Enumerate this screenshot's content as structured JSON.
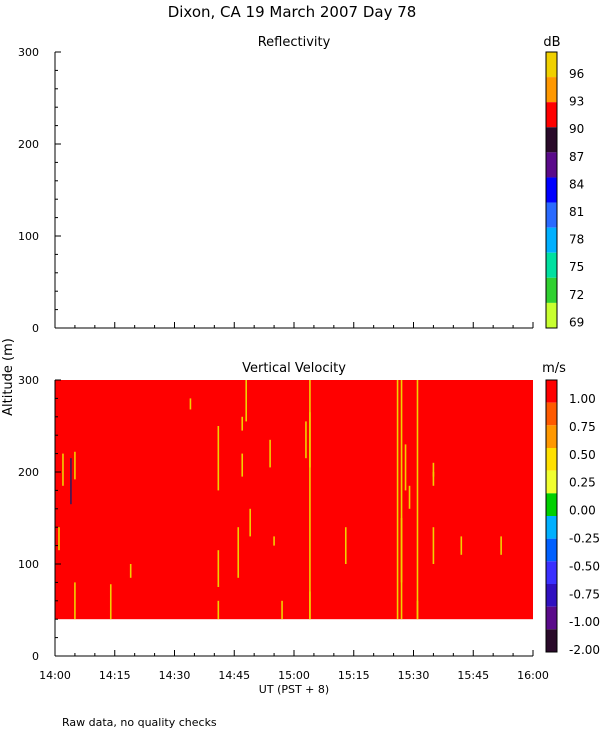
{
  "figure": {
    "title": "Dixon, CA 19 March 2007  Day  78",
    "footer": "Raw data, no quality checks"
  },
  "chart_data": [
    {
      "type": "heatmap",
      "title": "Reflectivity",
      "xlabel": "UT  (PST + 8)",
      "ylabel": "Altitude (m)",
      "xlim": [
        "14:00",
        "16:00"
      ],
      "x_ticks": [
        "14:00",
        "14:15",
        "14:30",
        "14:45",
        "15:00",
        "15:15",
        "15:30",
        "15:45",
        "16:00"
      ],
      "ylim": [
        0,
        300
      ],
      "y_ticks": [
        0,
        100,
        200,
        300
      ],
      "colorbar": {
        "unit": "dB",
        "labels": [
          "96",
          "93",
          "90",
          "87",
          "84",
          "81",
          "78",
          "75",
          "72",
          "69"
        ],
        "colors": [
          "#f0d000",
          "#ff9800",
          "#ff0000",
          "#2a0a2a",
          "#5a0a8a",
          "#0000ff",
          "#2a6aff",
          "#00b0ff",
          "#00e0a0",
          "#30d030",
          "#c8ff30"
        ]
      },
      "data": "no echoes displayed"
    },
    {
      "type": "heatmap",
      "title": "Vertical Velocity",
      "xlabel": "UT  (PST + 8)",
      "ylabel": "Altitude (m)",
      "xlim": [
        "14:00",
        "16:00"
      ],
      "x_ticks": [
        "14:00",
        "14:15",
        "14:30",
        "14:45",
        "15:00",
        "15:15",
        "15:30",
        "15:45",
        "16:00"
      ],
      "ylim": [
        0,
        300
      ],
      "y_ticks": [
        0,
        100,
        200,
        300
      ],
      "data_range_altitude": [
        40,
        300
      ],
      "dominant_value": 1.0,
      "colorbar": {
        "unit": "m/s",
        "labels": [
          "1.00",
          "0.75",
          "0.50",
          "0.25",
          "0.00",
          "-0.25",
          "-0.50",
          "-0.75",
          "-1.00",
          "-2.00"
        ],
        "colors": [
          "#ff0000",
          "#ff5a00",
          "#ff9800",
          "#ffe000",
          "#f0ff30",
          "#00d000",
          "#00b0ff",
          "#0060ff",
          "#3a30ff",
          "#3010c0",
          "#5a0a8a",
          "#2a0a2a"
        ]
      },
      "streaks": [
        {
          "x": "14:01",
          "y": [
            115,
            140
          ]
        },
        {
          "x": "14:02",
          "y": [
            185,
            220
          ]
        },
        {
          "x": "14:04",
          "y": [
            165,
            215
          ],
          "value": -2.0
        },
        {
          "x": "14:05",
          "y": [
            192,
            222
          ]
        },
        {
          "x": "14:05",
          "y": [
            40,
            80
          ]
        },
        {
          "x": "14:14",
          "y": [
            40,
            78
          ]
        },
        {
          "x": "14:19",
          "y": [
            85,
            100
          ]
        },
        {
          "x": "14:34",
          "y": [
            268,
            280
          ]
        },
        {
          "x": "14:41",
          "y": [
            40,
            60
          ]
        },
        {
          "x": "14:41",
          "y": [
            180,
            250
          ]
        },
        {
          "x": "14:41",
          "y": [
            75,
            115
          ]
        },
        {
          "x": "14:46",
          "y": [
            85,
            140
          ]
        },
        {
          "x": "14:47",
          "y": [
            195,
            220
          ]
        },
        {
          "x": "14:47",
          "y": [
            245,
            260
          ]
        },
        {
          "x": "14:48",
          "y": [
            255,
            300
          ]
        },
        {
          "x": "14:49",
          "y": [
            130,
            160
          ]
        },
        {
          "x": "14:54",
          "y": [
            205,
            235
          ]
        },
        {
          "x": "14:55",
          "y": [
            120,
            130
          ]
        },
        {
          "x": "14:57",
          "y": [
            40,
            60
          ]
        },
        {
          "x": "15:03",
          "y": [
            215,
            255
          ]
        },
        {
          "x": "15:04",
          "y": [
            40,
            300
          ]
        },
        {
          "x": "15:04",
          "y": [
            40,
            70
          ]
        },
        {
          "x": "15:04",
          "y": [
            205,
            265
          ]
        },
        {
          "x": "15:13",
          "y": [
            100,
            140
          ]
        },
        {
          "x": "15:26",
          "y": [
            40,
            300
          ]
        },
        {
          "x": "15:27",
          "y": [
            40,
            300
          ]
        },
        {
          "x": "15:27",
          "y": [
            80,
            150
          ]
        },
        {
          "x": "15:28",
          "y": [
            180,
            230
          ]
        },
        {
          "x": "15:29",
          "y": [
            160,
            185
          ]
        },
        {
          "x": "15:31",
          "y": [
            40,
            300
          ]
        },
        {
          "x": "15:31",
          "y": [
            40,
            60
          ]
        },
        {
          "x": "15:35",
          "y": [
            100,
            140
          ]
        },
        {
          "x": "15:35",
          "y": [
            185,
            200
          ]
        },
        {
          "x": "15:35",
          "y": [
            195,
            210
          ]
        },
        {
          "x": "15:42",
          "y": [
            110,
            130
          ]
        },
        {
          "x": "15:52",
          "y": [
            110,
            130
          ]
        }
      ]
    }
  ]
}
